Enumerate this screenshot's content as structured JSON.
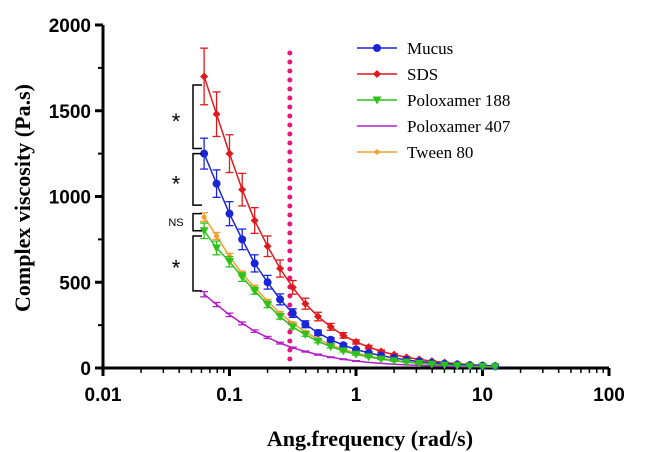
{
  "chart_data": {
    "type": "line",
    "x_scale": "log",
    "xlabel": "Ang.frequency (rad/s)",
    "ylabel": "Complex viscosity  (Pa.s)",
    "xlim": [
      0.01,
      100
    ],
    "ylim": [
      0,
      2000
    ],
    "x_ticks": [
      0.01,
      0.1,
      1,
      10,
      100
    ],
    "x_tick_labels": [
      "0.01",
      "0.1",
      "1",
      "10",
      "100"
    ],
    "y_ticks": [
      0,
      500,
      1000,
      1500,
      2000
    ],
    "y_tick_labels": [
      "0",
      "500",
      "1000",
      "1500",
      "2000"
    ],
    "grid": false,
    "legend_position": "top-right",
    "x": [
      0.063,
      0.079,
      0.1,
      0.126,
      0.158,
      0.2,
      0.251,
      0.316,
      0.398,
      0.501,
      0.631,
      0.794,
      1.0,
      1.26,
      1.58,
      2.0,
      2.51,
      3.16,
      3.98,
      5.01,
      6.31,
      7.94,
      10.0,
      12.6
    ],
    "series": [
      {
        "name": "Mucus",
        "color": "#1a24d8",
        "marker": "circle",
        "values": [
          1250,
          1075,
          900,
          750,
          610,
          500,
          400,
          320,
          255,
          205,
          165,
          133,
          108,
          88,
          72,
          58,
          47,
          38,
          31,
          25,
          20,
          16,
          13,
          10
        ],
        "errors": [
          90,
          80,
          70,
          60,
          50,
          40,
          32,
          25,
          20,
          16,
          12,
          10,
          8,
          6,
          5,
          4,
          3,
          2,
          2,
          2,
          2,
          1,
          1,
          1
        ]
      },
      {
        "name": "SDS",
        "color": "#e0191c",
        "marker": "diamond",
        "values": [
          1700,
          1480,
          1250,
          1040,
          860,
          710,
          580,
          470,
          375,
          300,
          240,
          190,
          152,
          122,
          97,
          78,
          62,
          50,
          40,
          32,
          25,
          20,
          16,
          12
        ],
        "errors": [
          165,
          130,
          110,
          95,
          75,
          60,
          50,
          40,
          32,
          25,
          20,
          16,
          12,
          10,
          8,
          6,
          5,
          4,
          3,
          3,
          2,
          2,
          2,
          1
        ]
      },
      {
        "name": "Poloxamer 188",
        "color": "#2ec21a",
        "marker": "triangle-down",
        "values": [
          800,
          700,
          620,
          530,
          450,
          370,
          300,
          240,
          195,
          155,
          125,
          100,
          80,
          65,
          52,
          42,
          34,
          27,
          22,
          17,
          14,
          11,
          9,
          7
        ],
        "errors": [
          45,
          40,
          30,
          25,
          20,
          18,
          15,
          12,
          10,
          8,
          7,
          6,
          5,
          4,
          3,
          3,
          2,
          2,
          2,
          1,
          1,
          1,
          1,
          1
        ]
      },
      {
        "name": "Poloxamer 407",
        "color": "#b31fc9",
        "marker": "none",
        "values": [
          430,
          370,
          310,
          260,
          215,
          178,
          145,
          118,
          96,
          78,
          63,
          51,
          41,
          33,
          27,
          22,
          18,
          15,
          12,
          10,
          8,
          7,
          6,
          5
        ],
        "errors": [
          15,
          12,
          10,
          8,
          7,
          6,
          5,
          4,
          3,
          3,
          2,
          2,
          2,
          1,
          1,
          1,
          1,
          1,
          1,
          1,
          1,
          1,
          1,
          1
        ]
      },
      {
        "name": "Tween 80",
        "color": "#f0a032",
        "marker": "small-circle",
        "values": [
          880,
          770,
          650,
          550,
          470,
          390,
          320,
          260,
          210,
          168,
          135,
          108,
          87,
          70,
          56,
          45,
          36,
          29,
          23,
          19,
          15,
          12,
          10,
          8
        ],
        "errors": [
          25,
          20,
          18,
          15,
          12,
          10,
          8,
          7,
          6,
          5,
          4,
          4,
          3,
          3,
          2,
          2,
          2,
          1,
          1,
          1,
          1,
          1,
          1,
          1
        ]
      }
    ],
    "reference_line": {
      "x": 0.3,
      "color": "#e8157a",
      "style": "dotted"
    },
    "significance_brackets": [
      {
        "y_range": [
          1280,
          1650
        ],
        "label": "*"
      },
      {
        "y_range": [
          950,
          1250
        ],
        "label": "*"
      },
      {
        "y_range": [
          800,
          900
        ],
        "label": "NS"
      },
      {
        "y_range": [
          450,
          770
        ],
        "label": "*"
      }
    ]
  }
}
